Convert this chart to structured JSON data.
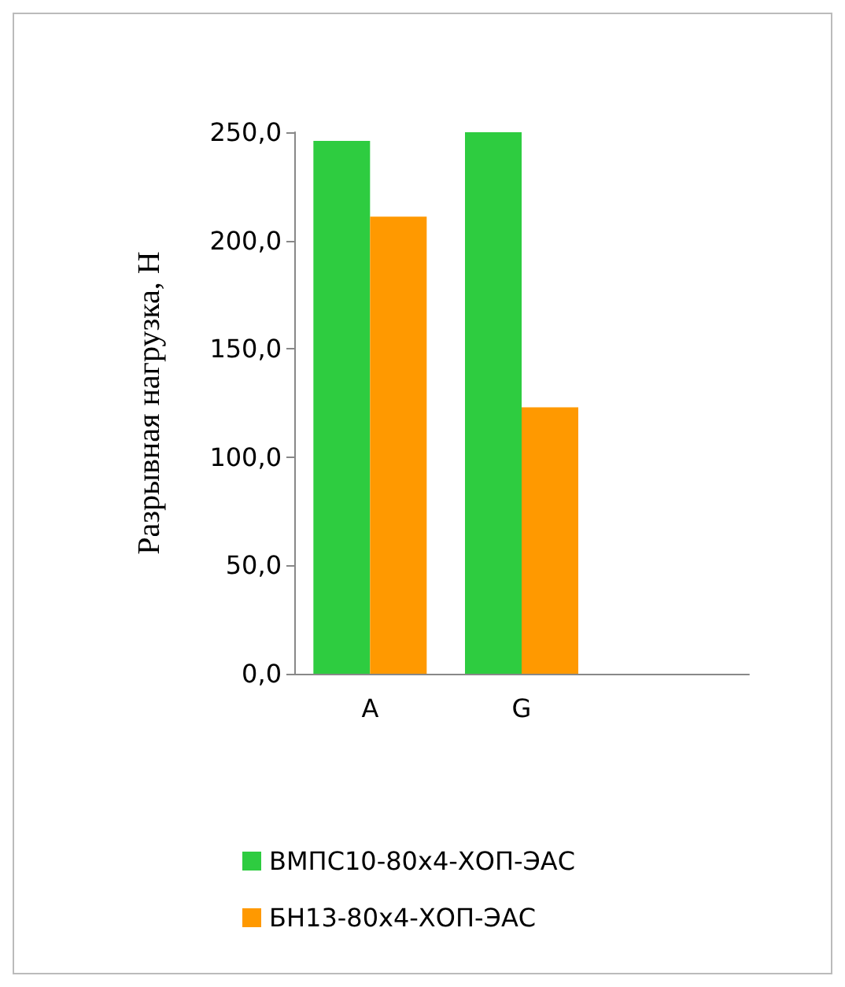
{
  "chart_data": {
    "type": "bar",
    "ylabel": "Разрывная нагрузка, Н",
    "categories": [
      "A",
      "G",
      null
    ],
    "series": [
      {
        "name": "ВМПС10-80х4-ХОП-ЭАС",
        "color": "#2ecc40",
        "values": [
          246,
          250,
          null
        ]
      },
      {
        "name": "БН13-80х4-ХОП-ЭАС",
        "color": "#ff9900",
        "values": [
          211,
          123,
          null
        ]
      }
    ],
    "ylim": [
      0,
      250
    ],
    "yticks": [
      {
        "value": 0,
        "label": "0,0"
      },
      {
        "value": 50,
        "label": "50,0"
      },
      {
        "value": 100,
        "label": "100,0"
      },
      {
        "value": 150,
        "label": "150,0"
      },
      {
        "value": 200,
        "label": "200,0"
      },
      {
        "value": 250,
        "label": "250,0"
      }
    ],
    "grid": false,
    "legend": "bottom"
  }
}
